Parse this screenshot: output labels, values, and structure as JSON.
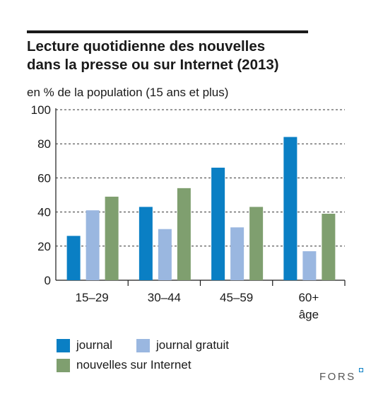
{
  "header": {
    "title_line1": "Lecture quotidienne des nouvelles",
    "title_line2": "dans la presse ou sur Internet (2013)",
    "subtitle": "en % de la population (15 ans et plus)"
  },
  "chart_data": {
    "type": "bar",
    "title": "Lecture quotidienne des nouvelles dans la presse ou sur Internet (2013)",
    "ylabel": "en % de la population (15 ans et plus)",
    "xlabel": "",
    "ylim": [
      0,
      100
    ],
    "yticks": [
      0,
      20,
      40,
      60,
      80,
      100
    ],
    "grid": "horizontal dashed",
    "legend_position": "bottom",
    "categories": [
      "15–29",
      "30–44",
      "45–59",
      "60+\nâge"
    ],
    "category_labels": [
      [
        "15–29"
      ],
      [
        "30–44"
      ],
      [
        "45–59"
      ],
      [
        "60+",
        "âge"
      ]
    ],
    "series": [
      {
        "name": "journal",
        "color": "#0a7fc4",
        "values": [
          26,
          43,
          66,
          84
        ]
      },
      {
        "name": "journal gratuit",
        "color": "#9ab7e0",
        "values": [
          41,
          30,
          31,
          17
        ]
      },
      {
        "name": "nouvelles sur Internet",
        "color": "#7f9f6f",
        "values": [
          49,
          54,
          43,
          39
        ]
      }
    ]
  },
  "brand": {
    "text": "FORS",
    "accent_color": "#0a7fc4"
  }
}
